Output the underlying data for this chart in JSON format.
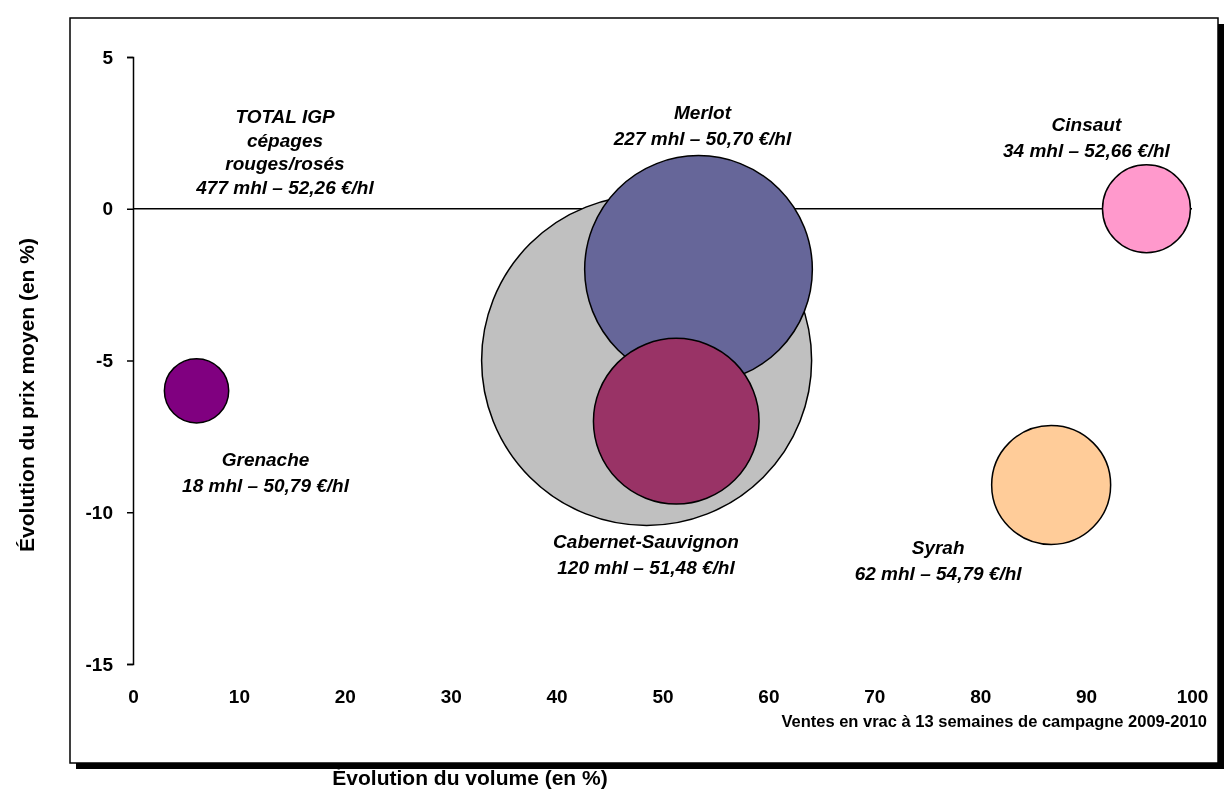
{
  "chart_data": {
    "type": "bubble",
    "xlabel": "Évolution du volume (en %)",
    "ylabel": "Évolution du prix moyen (en %)",
    "xlim": [
      0,
      100
    ],
    "xticks": [
      0,
      10,
      20,
      30,
      40,
      50,
      60,
      70,
      80,
      90,
      100
    ],
    "ylim": [
      -15,
      5
    ],
    "yticks": [
      -15,
      -10,
      -5,
      0,
      5
    ],
    "ref_lines": [
      {
        "axis": "y",
        "value": 0
      }
    ],
    "series": [
      {
        "color": "#c0c0c0",
        "x": [
          48.5
        ],
        "values": [
          -5
        ],
        "sizes": [
          1
        ]
      },
      {
        "name": "Merlot",
        "color": "#666699",
        "x": [
          53.4
        ],
        "values": [
          -2
        ],
        "sizes": [
          0.476
        ],
        "value_labels": [
          "227 mhl – 50,70 €/hl"
        ]
      },
      {
        "color": "#993366",
        "x": [
          51.3
        ],
        "values": [
          -7
        ],
        "sizes": [
          0.252
        ]
      },
      {
        "name": "Grenache",
        "color": "#800080",
        "x": [
          6
        ],
        "values": [
          -6
        ],
        "sizes": [
          0.038
        ],
        "value_labels": [
          "18 mhl – 50,79 €/hl"
        ]
      },
      {
        "name": "Cinsaut",
        "color": "#ff99cc",
        "x": [
          95.7
        ],
        "values": [
          0
        ],
        "sizes": [
          0.071
        ],
        "value_labels": [
          "34 mhl – 52,66 €/hl"
        ]
      },
      {
        "name": "Syrah",
        "color": "#ffcc99",
        "x": [
          86.7
        ],
        "values": [
          -9.1
        ],
        "sizes": [
          0.13
        ],
        "value_labels": [
          "62 mhl – 54,79 €/hl"
        ]
      }
    ],
    "annotations": [
      "TOTAL IGP\ncépages\nrouges/rosés\n477 mhl – 52,26 €/hl",
      "Cabernet-Sauvignon\n120 mhl – 51,48 €/hl",
      "Ventes en vrac à 13 semaines de campagne 2009-2010"
    ]
  }
}
